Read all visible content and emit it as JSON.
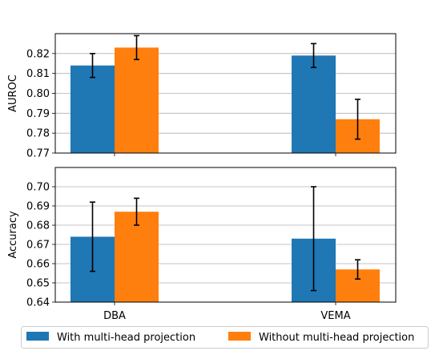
{
  "chart_data": [
    {
      "type": "bar",
      "ylabel": "AUROC",
      "categories": [
        "DBA",
        "VEMA"
      ],
      "ylim": [
        0.77,
        0.83
      ],
      "yticks": [
        "0.77",
        "0.78",
        "0.79",
        "0.80",
        "0.81",
        "0.82"
      ],
      "grid": true,
      "show_xticklabels": false,
      "series": [
        {
          "name": "With multi-head projection",
          "values": [
            0.814,
            0.819
          ],
          "err": [
            0.006,
            0.006
          ],
          "color": "#1f77b4"
        },
        {
          "name": "Without multi-head projection",
          "values": [
            0.823,
            0.787
          ],
          "err": [
            0.006,
            0.01
          ],
          "color": "#ff7f0e"
        }
      ]
    },
    {
      "type": "bar",
      "ylabel": "Accuracy",
      "categories": [
        "DBA",
        "VEMA"
      ],
      "ylim": [
        0.64,
        0.71
      ],
      "yticks": [
        "0.64",
        "0.65",
        "0.66",
        "0.67",
        "0.68",
        "0.69",
        "0.70"
      ],
      "grid": true,
      "show_xticklabels": true,
      "series": [
        {
          "name": "With multi-head projection",
          "values": [
            0.674,
            0.673
          ],
          "err": [
            0.018,
            0.027
          ],
          "color": "#1f77b4"
        },
        {
          "name": "Without multi-head projection",
          "values": [
            0.687,
            0.657
          ],
          "err": [
            0.007,
            0.005
          ],
          "color": "#ff7f0e"
        }
      ]
    }
  ],
  "legend": {
    "placement": "bottom",
    "items": [
      {
        "label": "With multi-head projection",
        "color": "#1f77b4"
      },
      {
        "label": "Without multi-head projection",
        "color": "#ff7f0e"
      }
    ]
  }
}
